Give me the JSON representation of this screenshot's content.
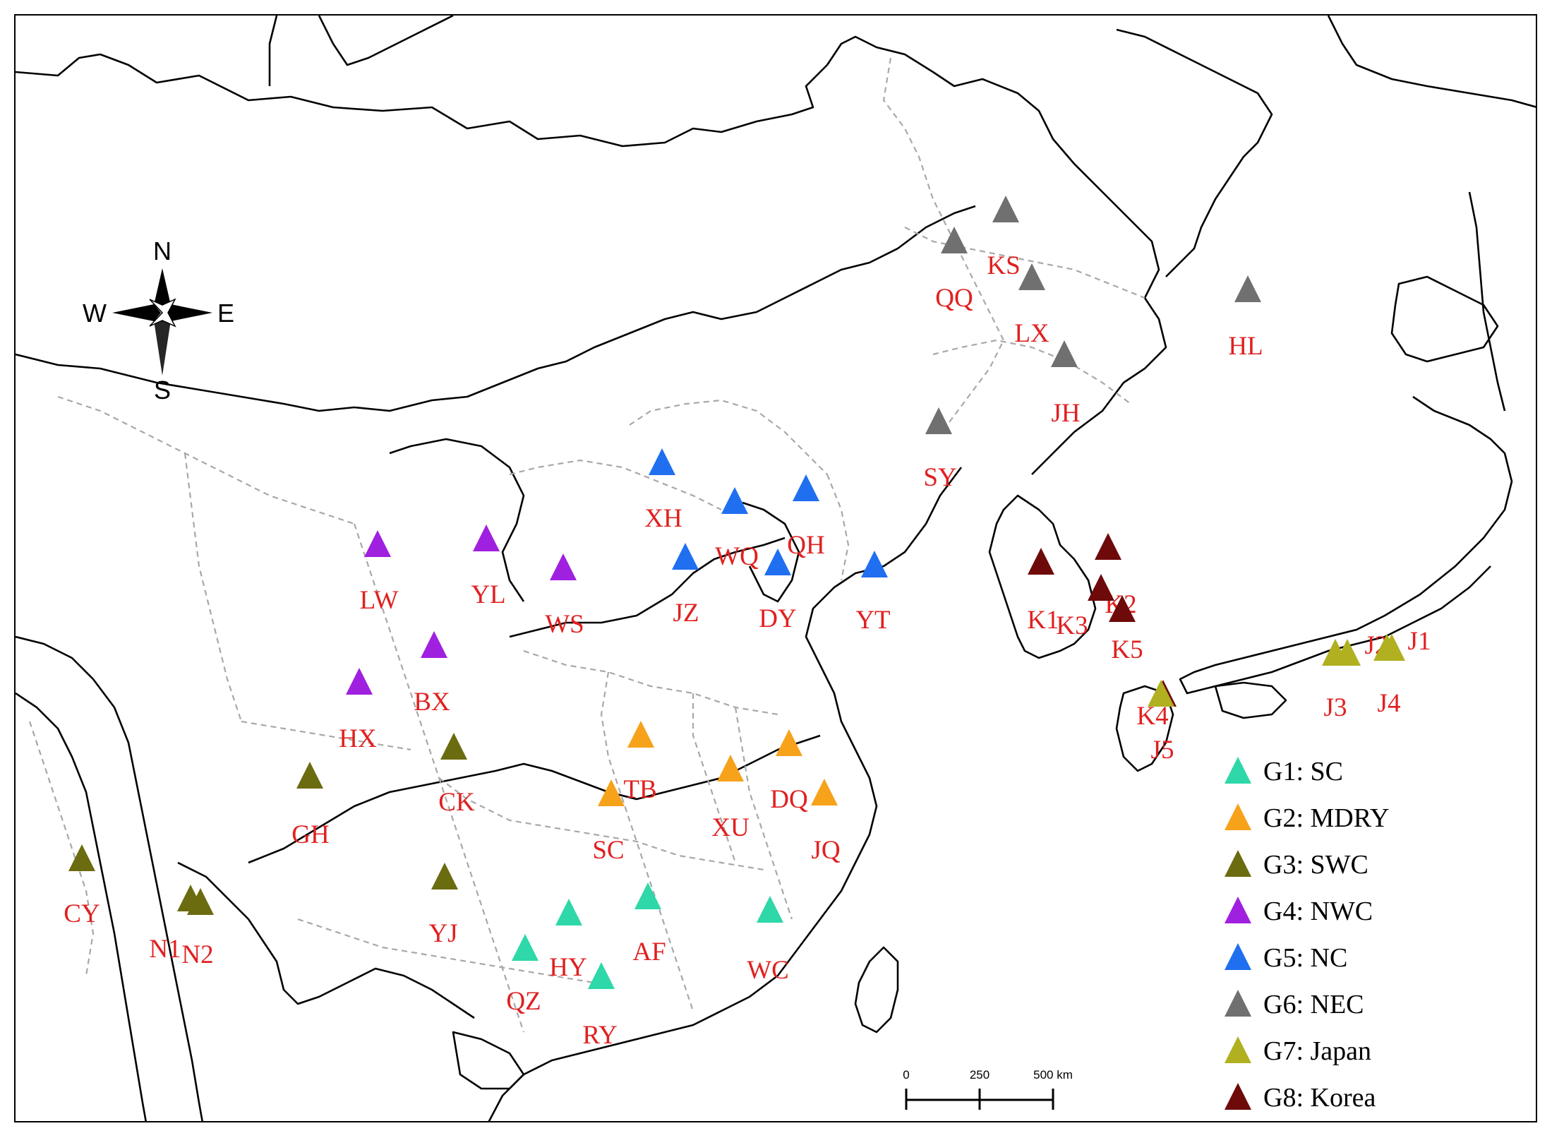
{
  "compass": {
    "north": "N",
    "south": "S",
    "east": "E",
    "west": "W"
  },
  "scale_bar": {
    "ticks": [
      "0",
      "250",
      "500 km"
    ]
  },
  "groups": [
    {
      "id": "G1",
      "label": "G1: SC",
      "color": "#2ed8a8"
    },
    {
      "id": "G2",
      "label": "G2: MDRY",
      "color": "#f7a21b"
    },
    {
      "id": "G3",
      "label": "G3: SWC",
      "color": "#6b6b10"
    },
    {
      "id": "G4",
      "label": "G4: NWC",
      "color": "#a020e0"
    },
    {
      "id": "G5",
      "label": "G5: NC",
      "color": "#1f6ff0"
    },
    {
      "id": "G6",
      "label": "G6: NEC",
      "color": "#707070"
    },
    {
      "id": "G7",
      "label": "G7: Japan",
      "color": "#b0b020"
    },
    {
      "id": "G8",
      "label": "G8: Korea",
      "color": "#6e0a0a"
    }
  ],
  "site_labels": [
    "QQ",
    "KS",
    "LX",
    "HL",
    "JH",
    "SY",
    "XH",
    "WQ",
    "QH",
    "JZ",
    "DY",
    "YT",
    "LW",
    "YL",
    "WS",
    "BX",
    "HX",
    "CK",
    "GH",
    "CY",
    "N1",
    "N2",
    "YJ",
    "HY",
    "AF",
    "QZ",
    "RY",
    "WC",
    "TB",
    "SC",
    "XU",
    "DQ",
    "JQ",
    "K1",
    "K2",
    "K3",
    "K5",
    "K4",
    "J1",
    "J2",
    "J3",
    "J4",
    "J5"
  ],
  "site_colors": [
    "G6",
    "G6",
    "G6",
    "G6",
    "G6",
    "G6",
    "G5",
    "G5",
    "G5",
    "G5",
    "G5",
    "G5",
    "G4",
    "G4",
    "G4",
    "G4",
    "G4",
    "G3",
    "G3",
    "G3",
    "G3",
    "G3",
    "G3",
    "G1",
    "G1",
    "G1",
    "G1",
    "G1",
    "G2",
    "G2",
    "G2",
    "G2",
    "G2",
    "G8",
    "G8",
    "G8",
    "G8",
    "G8",
    "G7",
    "G7",
    "G7",
    "G7",
    "G7"
  ]
}
